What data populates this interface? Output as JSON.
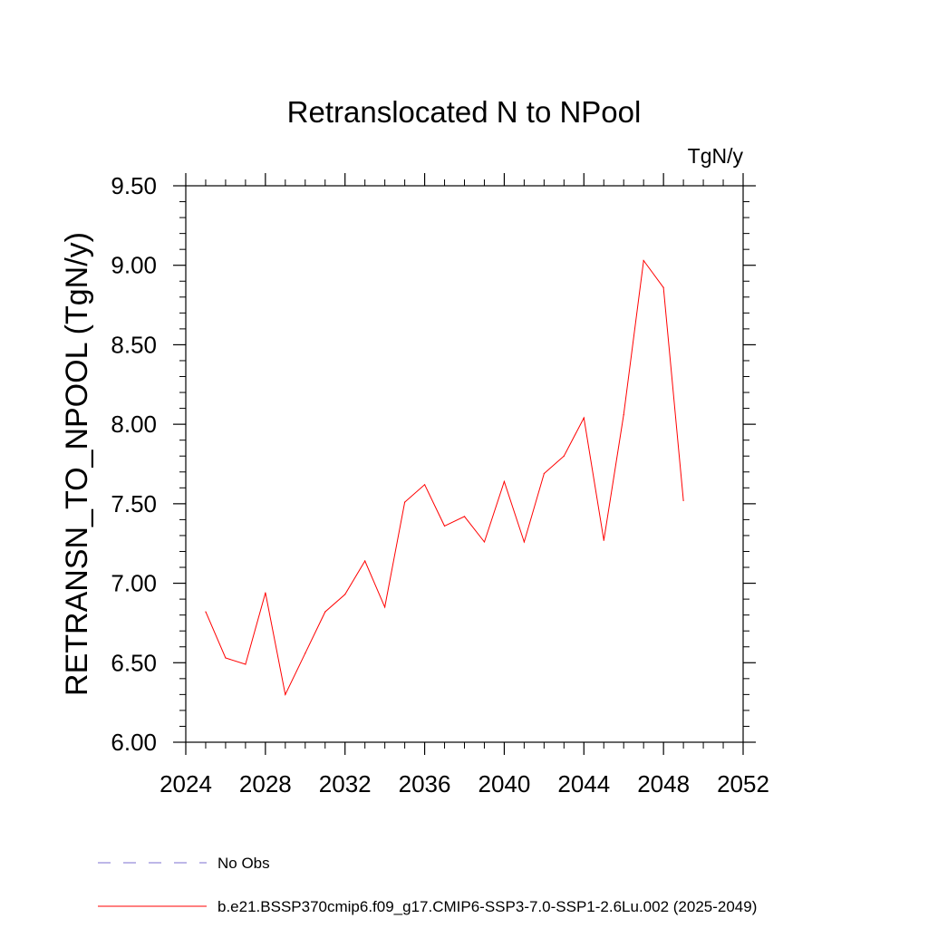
{
  "chart_data": {
    "type": "line",
    "title": "Retranslocated N to NPool",
    "units_label": "TgN/y",
    "ylabel": "RETRANSN_TO_NPOOL  (TgN/y)",
    "xlabel": "",
    "xlim": [
      2024,
      2052
    ],
    "ylim": [
      6.0,
      9.5
    ],
    "x_ticks": [
      2024,
      2028,
      2032,
      2036,
      2040,
      2044,
      2048,
      2052
    ],
    "x_tick_labels": [
      "2024",
      "2028",
      "2032",
      "2036",
      "2040",
      "2044",
      "2048",
      "2052"
    ],
    "y_ticks": [
      6.0,
      6.5,
      7.0,
      7.5,
      8.0,
      8.5,
      9.0,
      9.5
    ],
    "y_tick_labels": [
      "6.00",
      "6.50",
      "7.00",
      "7.50",
      "8.00",
      "8.50",
      "9.00",
      "9.50"
    ],
    "grid": false,
    "legend_position": "bottom-left",
    "legend": [
      {
        "label": "No Obs",
        "style": "dashed",
        "color": "#7b6fd0"
      },
      {
        "label": "b.e21.BSSP370cmip6.f09_g17.CMIP6-SSP3-7.0-SSP1-2.6Lu.002 (2025-2049)",
        "style": "solid",
        "color": "#ff0000"
      }
    ],
    "series": [
      {
        "name": "b.e21.BSSP370cmip6.f09_g17.CMIP6-SSP3-7.0-SSP1-2.6Lu.002 (2025-2049)",
        "color": "#ff0000",
        "x": [
          2025,
          2026,
          2027,
          2028,
          2029,
          2030,
          2031,
          2032,
          2033,
          2034,
          2035,
          2036,
          2037,
          2038,
          2039,
          2040,
          2041,
          2042,
          2043,
          2044,
          2045,
          2046,
          2047,
          2048,
          2049
        ],
        "values": [
          6.82,
          6.53,
          6.49,
          6.94,
          6.3,
          6.56,
          6.82,
          6.93,
          7.14,
          6.85,
          7.51,
          7.62,
          7.36,
          7.42,
          7.26,
          7.64,
          7.26,
          7.69,
          7.8,
          8.04,
          7.27,
          8.06,
          9.03,
          8.86,
          7.52
        ]
      }
    ]
  }
}
